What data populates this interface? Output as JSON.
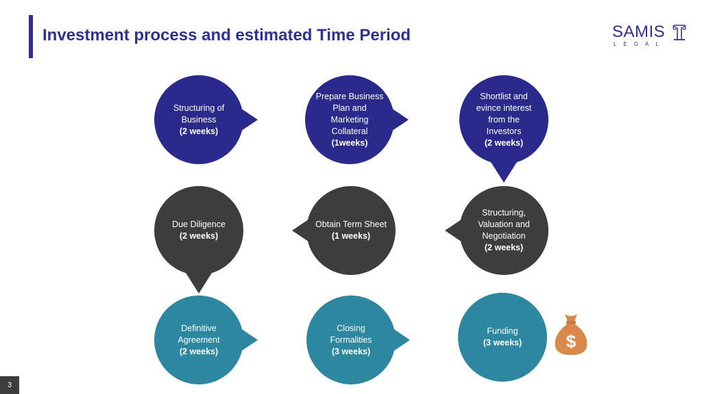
{
  "header": {
    "title": "Investment process and estimated Time Period"
  },
  "logo": {
    "main": "SAMIS",
    "sub": "LEGAL"
  },
  "colors": {
    "blue": "#2a2a8c",
    "dark": "#3d3d3d",
    "teal": "#2e87a0",
    "title": "#2e3191",
    "moneybag": "#d98a4a"
  },
  "steps": [
    {
      "lines": [
        "Structuring of",
        "Business"
      ],
      "duration": "(2 weeks)",
      "icon": ""
    },
    {
      "lines": [
        "Prepare Business",
        "Plan and",
        "Marketing",
        "Collateral"
      ],
      "duration": "(1weeks)",
      "icon": ""
    },
    {
      "lines": [
        "Shortlist and",
        "evince interest",
        "from the",
        "Investors"
      ],
      "duration": "(2 weeks)",
      "icon": ""
    },
    {
      "lines": [
        "Due Diligence"
      ],
      "duration": "(2 weeks)",
      "icon": ""
    },
    {
      "lines": [
        "Obtain Term Sheet"
      ],
      "duration": "(1 weeks)",
      "icon": ""
    },
    {
      "lines": [
        "Structuring,",
        "Valuation and",
        "Negotiation"
      ],
      "duration": "(2 weeks)",
      "icon": ""
    },
    {
      "lines": [
        "Definitive",
        "Agreement"
      ],
      "duration": "(2 weeks)",
      "icon": ""
    },
    {
      "lines": [
        "Closing",
        "Formalities"
      ],
      "duration": "(3 weeks)",
      "icon": ""
    },
    {
      "lines": [
        "Funding"
      ],
      "duration": "(3 weeks)",
      "icon": ""
    }
  ],
  "moneybag": {
    "symbol": "$",
    "icon": "money-bag-icon"
  },
  "footer": {
    "page_number": "3"
  }
}
